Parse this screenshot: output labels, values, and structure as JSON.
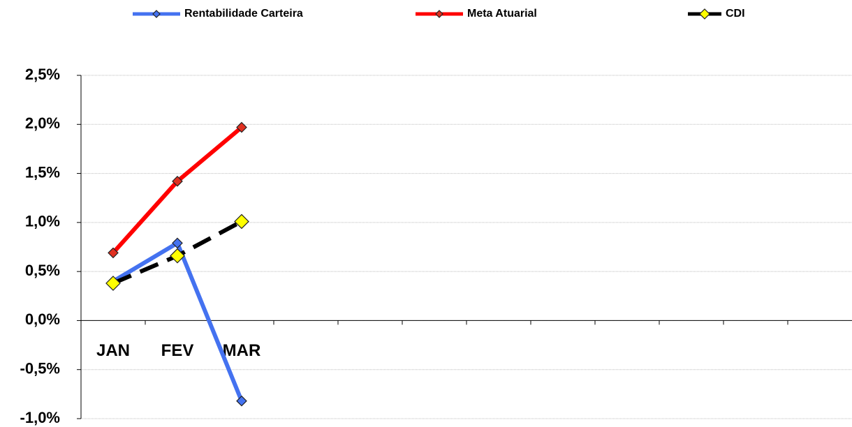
{
  "chart_data": {
    "type": "line",
    "categories": [
      "JAN",
      "FEV",
      "MAR",
      null,
      null,
      null,
      null,
      null,
      null,
      null,
      null,
      null
    ],
    "series": [
      {
        "name": "Rentabilidade Carteira",
        "color": "#4472f0",
        "marker_color": "#4472f0",
        "line_style": "solid",
        "values": [
          0.4,
          0.79,
          -0.82,
          null,
          null,
          null,
          null,
          null,
          null,
          null,
          null,
          null
        ]
      },
      {
        "name": "Meta Atuarial",
        "color": "#ff0000",
        "marker_color": "#e03020",
        "line_style": "solid",
        "values": [
          0.69,
          1.42,
          1.97,
          null,
          null,
          null,
          null,
          null,
          null,
          null,
          null,
          null
        ]
      },
      {
        "name": "CDI",
        "color": "#000000",
        "marker_color": "#ffff00",
        "line_style": "dashed",
        "values": [
          0.38,
          0.66,
          1.01,
          null,
          null,
          null,
          null,
          null,
          null,
          null,
          null,
          null
        ]
      }
    ],
    "ylim": [
      -1.0,
      2.5
    ],
    "yticks": [
      {
        "value": -1.0,
        "label": "-1,0%"
      },
      {
        "value": -0.5,
        "label": "-0,5%"
      },
      {
        "value": 0,
        "label": "0,0%"
      },
      {
        "value": 0.5,
        "label": "0,5%"
      },
      {
        "value": 1.0,
        "label": "1,0%"
      },
      {
        "value": 1.5,
        "label": "1,5%"
      },
      {
        "value": 2.0,
        "label": "2,0%"
      },
      {
        "value": 2.5,
        "label": "2,5%"
      }
    ],
    "grid": true
  }
}
